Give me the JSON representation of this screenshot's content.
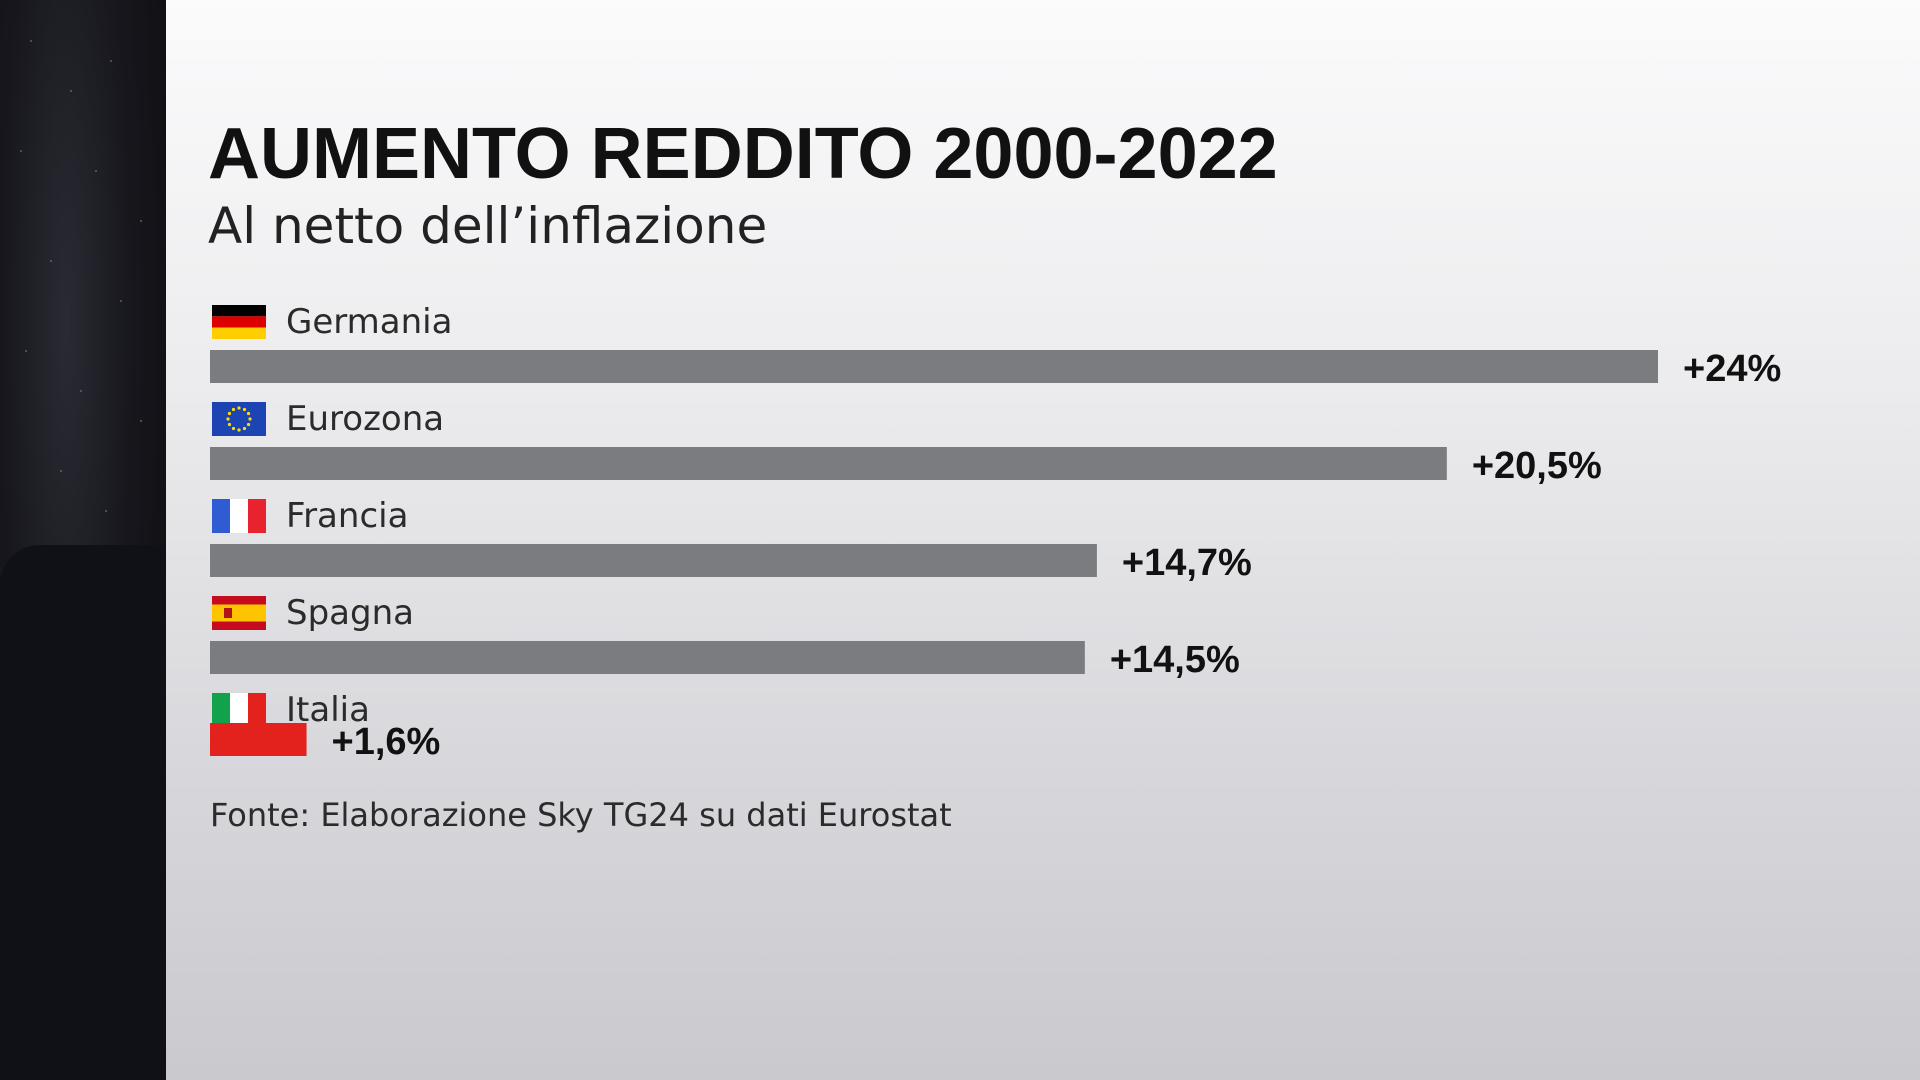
{
  "chart_data": {
    "type": "bar",
    "orientation": "horizontal",
    "title": "AUMENTO REDDITO 2000-2022",
    "subtitle": "Al netto dell’inflazione",
    "categories": [
      "Germania",
      "Eurozona",
      "Francia",
      "Spagna",
      "Italia"
    ],
    "values": [
      24,
      20.5,
      14.7,
      14.5,
      1.6
    ],
    "value_labels": [
      "+24%",
      "+20,5%",
      "+14,7%",
      "+14,5%",
      "+1,6%"
    ],
    "flags": [
      "flag-germany-icon",
      "flag-eu-icon",
      "flag-france-icon",
      "flag-spain-icon",
      "flag-italy-icon"
    ],
    "bar_colors": [
      "#7b7c80",
      "#7b7c80",
      "#7b7c80",
      "#7b7c80",
      "#e3211d"
    ],
    "xlim": [
      0,
      24
    ],
    "source": "Fonte: Elaborazione Sky TG24 su dati Eurostat"
  },
  "colors": {
    "bar_default": "#7b7c80",
    "bar_highlight": "#e3211d",
    "text": "#111111"
  }
}
